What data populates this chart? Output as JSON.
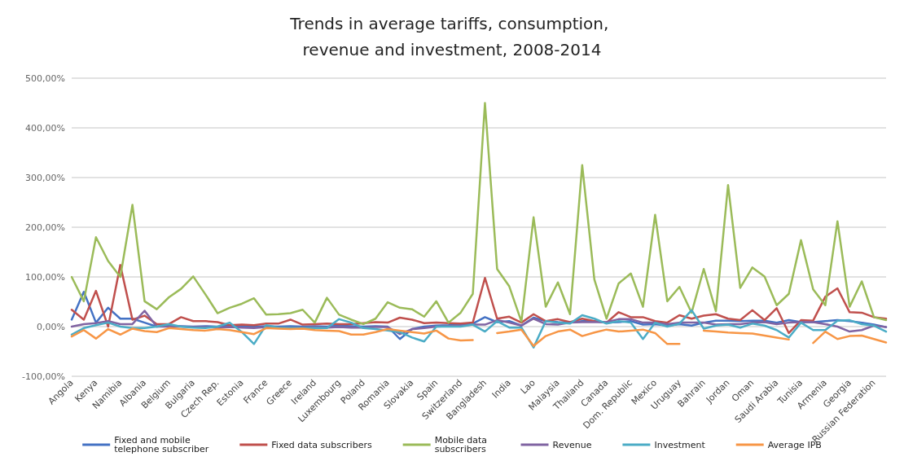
{
  "chart_data": {
    "type": "line",
    "title": "Trends in average tariffs, consumption, revenue and investment, 2008-2014",
    "categories": [
      "Angola",
      null,
      "Kenya",
      null,
      "Namibia",
      null,
      "Albania",
      null,
      "Belgium",
      null,
      "Bulgaria",
      null,
      "Czech Rep.",
      null,
      "Estonia",
      null,
      "France",
      null,
      "Greece",
      null,
      "Ireland",
      null,
      "Luxembourg",
      null,
      "Poland",
      null,
      "Romania",
      null,
      "Slovakia",
      null,
      "Spain",
      null,
      "Switzerland",
      null,
      "Bangladesh",
      null,
      "India",
      null,
      "Lao",
      null,
      "Malaysia",
      null,
      "Thailand",
      null,
      "Canada",
      null,
      "Dom. Republic",
      null,
      "Mexico",
      null,
      "Uruguay",
      null,
      "Bahrain",
      null,
      "Jordan",
      null,
      "Oman",
      null,
      "Saudi Arabia",
      null,
      "Tunisia",
      null,
      "Armenia",
      null,
      "Georgia",
      null,
      "Russian Federation",
      null
    ],
    "series": [
      {
        "name": "Fixed and mobile telephone subscriber",
        "color": "#4472c4",
        "values": [
          14,
          70,
          8,
          38,
          16,
          16,
          8,
          0,
          2,
          1,
          0,
          1,
          0,
          2,
          1,
          0,
          1,
          0,
          1,
          0,
          1,
          0,
          2,
          1,
          0,
          1,
          0,
          -25,
          -5,
          0,
          2,
          3,
          5,
          6,
          19,
          9,
          11,
          2,
          18,
          11,
          9,
          8,
          11,
          11,
          8,
          9,
          11,
          4,
          5,
          2,
          5,
          2,
          8,
          12,
          12,
          11,
          12,
          12,
          8,
          13,
          9,
          9,
          11,
          13,
          11,
          8,
          4,
          -1
        ]
      },
      {
        "name": "Fixed data subscribers",
        "color": "#c0504d",
        "values": [
          34,
          14,
          72,
          0,
          124,
          14,
          22,
          5,
          5,
          19,
          11,
          11,
          9,
          3,
          4,
          3,
          6,
          6,
          14,
          4,
          5,
          6,
          5,
          5,
          7,
          9,
          8,
          18,
          14,
          7,
          8,
          7,
          6,
          8,
          98,
          16,
          20,
          8,
          25,
          11,
          15,
          9,
          16,
          11,
          8,
          29,
          19,
          19,
          11,
          8,
          23,
          16,
          22,
          25,
          16,
          13,
          33,
          13,
          37,
          -13,
          13,
          12,
          60,
          77,
          29,
          28,
          19,
          16
        ]
      },
      {
        "name": "Mobile data subscribers",
        "color": "#9bbb59",
        "values": [
          100,
          51,
          180,
          132,
          100,
          245,
          51,
          35,
          59,
          76,
          101,
          65,
          27,
          38,
          46,
          57,
          24,
          25,
          27,
          34,
          8,
          58,
          24,
          14,
          5,
          16,
          49,
          38,
          35,
          20,
          51,
          8,
          28,
          66,
          450,
          116,
          81,
          10,
          220,
          40,
          89,
          25,
          325,
          95,
          16,
          87,
          107,
          40,
          225,
          51,
          80,
          28,
          116,
          31,
          285,
          78,
          119,
          101,
          43,
          66,
          174,
          75,
          43,
          212,
          40,
          91,
          19,
          13
        ]
      },
      {
        "name": "Revenue",
        "color": "#8064a2",
        "values": [
          0,
          5,
          7,
          11,
          5,
          5,
          32,
          0,
          0,
          0,
          -1,
          -1,
          -2,
          -1,
          -2,
          -3,
          -1,
          -2,
          -2,
          -3,
          -1,
          -2,
          -1,
          -2,
          -2,
          -1,
          -1,
          -15,
          -5,
          -3,
          0,
          1,
          2,
          4,
          4,
          13,
          8,
          2,
          16,
          5,
          4,
          8,
          9,
          9,
          9,
          15,
          15,
          8,
          8,
          5,
          8,
          8,
          8,
          4,
          5,
          5,
          8,
          9,
          5,
          8,
          9,
          9,
          5,
          0,
          -10,
          -7,
          2,
          -1
        ]
      },
      {
        "name": "Investment",
        "color": "#4bacc6",
        "values": [
          -16,
          -3,
          3,
          8,
          0,
          -3,
          -3,
          0,
          5,
          0,
          -2,
          -3,
          0,
          8,
          -11,
          -35,
          3,
          -2,
          -3,
          -3,
          -3,
          -3,
          15,
          8,
          -3,
          -5,
          -8,
          -11,
          -22,
          -30,
          0,
          0,
          0,
          4,
          -10,
          11,
          -2,
          -2,
          -42,
          11,
          8,
          6,
          23,
          16,
          6,
          11,
          8,
          -25,
          8,
          0,
          6,
          33,
          -4,
          2,
          4,
          -2,
          6,
          2,
          -7,
          -22,
          8,
          -7,
          -7,
          12,
          13,
          5,
          2,
          -10
        ]
      },
      {
        "name": "Average IPB",
        "color": "#f79646",
        "values": [
          -20,
          -7,
          -24,
          -5,
          -16,
          -4,
          -9,
          -11,
          -3,
          -5,
          -7,
          -8,
          -5,
          -7,
          -11,
          -15,
          -3,
          -4,
          -5,
          -4,
          -7,
          -8,
          -9,
          -16,
          -16,
          -11,
          -5,
          -8,
          -11,
          -14,
          -8,
          -24,
          -28,
          -27,
          null,
          -13,
          -10,
          -6,
          -39,
          -19,
          -10,
          -6,
          -19,
          -12,
          -6,
          -10,
          -8,
          -6,
          -13,
          -35,
          -35,
          null,
          -8,
          -10,
          -12,
          -13,
          -14,
          -18,
          -22,
          -26,
          null,
          -33,
          -10,
          -25,
          -19,
          -18,
          -25,
          -32
        ]
      }
    ],
    "ylim": [
      -100,
      500
    ],
    "yticks": [
      {
        "value": -100,
        "label": "-100,00%"
      },
      {
        "value": 0,
        "label": "0,00%"
      },
      {
        "value": 100,
        "label": "100,00%"
      },
      {
        "value": 200,
        "label": "200,00%"
      },
      {
        "value": 300,
        "label": "300,00%"
      },
      {
        "value": 400,
        "label": "400,00%"
      },
      {
        "value": 500,
        "label": "500,00%"
      }
    ],
    "grid": "y",
    "legend": "bottom",
    "marker": "none",
    "line_style": "solid"
  }
}
